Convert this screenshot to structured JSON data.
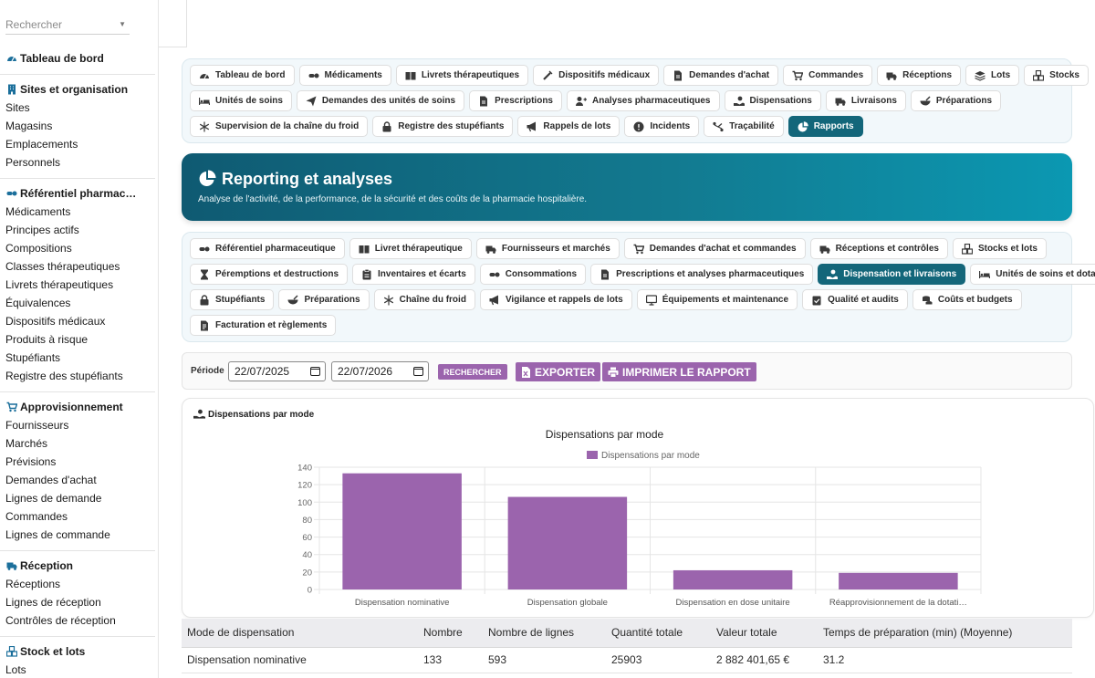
{
  "sidebar": {
    "search_placeholder": "Rechercher",
    "dashboard": "Tableau de bord",
    "groups": [
      {
        "title": "Sites et organisation",
        "icon": "building-icon",
        "items": [
          "Sites",
          "Magasins",
          "Emplacements",
          "Personnels"
        ]
      },
      {
        "title": "Référentiel pharmac…",
        "icon": "pills-icon",
        "items": [
          "Médicaments",
          "Principes actifs",
          "Compositions",
          "Classes thérapeutiques",
          "Livrets thérapeutiques",
          "Équivalences",
          "Dispositifs médicaux",
          "Produits à risque",
          "Stupéfiants",
          "Registre des stupéfiants"
        ]
      },
      {
        "title": "Approvisionnement",
        "icon": "cart-icon",
        "items": [
          "Fournisseurs",
          "Marchés",
          "Prévisions",
          "Demandes d'achat",
          "Lignes de demande",
          "Commandes",
          "Lignes de commande"
        ]
      },
      {
        "title": "Réception",
        "icon": "truck-icon",
        "items": [
          "Réceptions",
          "Lignes de réception",
          "Contrôles de réception"
        ]
      },
      {
        "title": "Stock et lots",
        "icon": "cubes-icon",
        "items": [
          "Lots"
        ]
      }
    ]
  },
  "main_tabs": [
    [
      {
        "label": "Tableau de bord",
        "icon": "gauge-icon"
      },
      {
        "label": "Médicaments",
        "icon": "pills-icon"
      },
      {
        "label": "Livrets thérapeutiques",
        "icon": "book-icon"
      },
      {
        "label": "Dispositifs médicaux",
        "icon": "syringe-icon"
      },
      {
        "label": "Demandes d'achat",
        "icon": "file-icon"
      },
      {
        "label": "Commandes",
        "icon": "cart-icon"
      },
      {
        "label": "Réceptions",
        "icon": "truck-icon"
      },
      {
        "label": "Lots",
        "icon": "layers-icon"
      },
      {
        "label": "Stocks",
        "icon": "cubes-icon"
      }
    ],
    [
      {
        "label": "Unités de soins",
        "icon": "bed-icon"
      },
      {
        "label": "Demandes des unités de soins",
        "icon": "send-icon"
      },
      {
        "label": "Prescriptions",
        "icon": "file-icon"
      },
      {
        "label": "Analyses pharmaceutiques",
        "icon": "user-doctor-icon"
      },
      {
        "label": "Dispensations",
        "icon": "hand-icon"
      },
      {
        "label": "Livraisons",
        "icon": "truck-icon"
      },
      {
        "label": "Préparations",
        "icon": "mortar-icon"
      }
    ],
    [
      {
        "label": "Supervision de la chaîne du froid",
        "icon": "snowflake-icon"
      },
      {
        "label": "Registre des stupéfiants",
        "icon": "lock-icon"
      },
      {
        "label": "Rappels de lots",
        "icon": "megaphone-icon"
      },
      {
        "label": "Incidents",
        "icon": "alert-icon"
      },
      {
        "label": "Traçabilité",
        "icon": "route-icon"
      },
      {
        "label": "Rapports",
        "icon": "pie-icon",
        "active": true
      }
    ]
  ],
  "hero": {
    "title": "Reporting et analyses",
    "subtitle": "Analyse de l'activité, de la performance, de la sécurité et des coûts de la pharmacie hospitalière."
  },
  "report_tabs": [
    [
      {
        "label": "Référentiel pharmaceutique",
        "icon": "pills-icon"
      },
      {
        "label": "Livret thérapeutique",
        "icon": "book-icon"
      },
      {
        "label": "Fournisseurs et marchés",
        "icon": "truck-icon"
      },
      {
        "label": "Demandes d'achat et commandes",
        "icon": "cart-icon"
      },
      {
        "label": "Réceptions et contrôles",
        "icon": "truck-icon"
      },
      {
        "label": "Stocks et lots",
        "icon": "cubes-icon"
      }
    ],
    [
      {
        "label": "Péremptions et destructions",
        "icon": "hourglass-icon"
      },
      {
        "label": "Inventaires et écarts",
        "icon": "clipboard-icon"
      },
      {
        "label": "Consommations",
        "icon": "pills-icon"
      },
      {
        "label": "Prescriptions et analyses pharmaceutiques",
        "icon": "file-icon"
      },
      {
        "label": "Dispensation et livraisons",
        "icon": "hand-icon",
        "active": true
      },
      {
        "label": "Unités de soins et dotations",
        "icon": "bed-icon"
      }
    ],
    [
      {
        "label": "Stupéfiants",
        "icon": "lock-icon"
      },
      {
        "label": "Préparations",
        "icon": "mortar-icon"
      },
      {
        "label": "Chaîne du froid",
        "icon": "snowflake-icon"
      },
      {
        "label": "Vigilance et rappels de lots",
        "icon": "megaphone-icon"
      },
      {
        "label": "Équipements et maintenance",
        "icon": "monitor-icon"
      },
      {
        "label": "Qualité et audits",
        "icon": "clipboard-check-icon"
      },
      {
        "label": "Coûts et budgets",
        "icon": "coins-icon"
      }
    ],
    [
      {
        "label": "Facturation et règlements",
        "icon": "invoice-icon"
      }
    ]
  ],
  "period": {
    "label": "Période",
    "start": "22/07/2025",
    "end": "22/07/2026",
    "search_button": "RECHERCHER",
    "export_button": "EXPORTER",
    "print_button": "IMPRIMER LE RAPPORT"
  },
  "chart_card_title": "Dispensations par mode",
  "chart_data": {
    "type": "bar",
    "title": "Dispensations par mode",
    "legend": "top",
    "categories": [
      "Dispensation nominative",
      "Dispensation globale",
      "Dispensation en dose unitaire",
      "Réapprovisionnement de la dotati…"
    ],
    "series": [
      {
        "name": "Dispensations par mode",
        "values": [
          133,
          106,
          22,
          19
        ]
      }
    ],
    "yticks": [
      0,
      20,
      40,
      60,
      80,
      100,
      120,
      140
    ],
    "ylim": [
      0,
      140
    ],
    "grid": true,
    "bar_color": "#9b64ad"
  },
  "table": {
    "headers": [
      "Mode de dispensation",
      "Nombre",
      "Nombre de lignes",
      "Quantité totale",
      "Valeur totale",
      "Temps de préparation (min) (Moyenne)"
    ],
    "rows": [
      [
        "Dispensation nominative",
        "133",
        "593",
        "25903",
        "2 882 401,65 €",
        "31.2"
      ]
    ]
  }
}
